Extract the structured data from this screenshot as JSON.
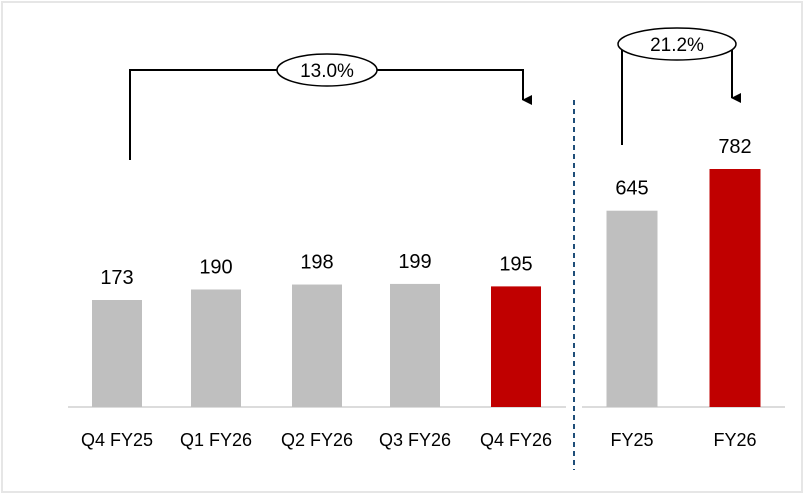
{
  "chart_data": [
    {
      "type": "bar",
      "categories": [
        "Q4 FY25",
        "Q1 FY26",
        "Q2 FY26",
        "Q3 FY26",
        "Q4 FY26"
      ],
      "values": [
        173,
        190,
        198,
        199,
        195
      ],
      "bar_colors": [
        "#bfbfbf",
        "#bfbfbf",
        "#bfbfbf",
        "#bfbfbf",
        "#c00000"
      ],
      "growth_annotation": "13.0%"
    },
    {
      "type": "bar",
      "categories": [
        "FY25",
        "FY26"
      ],
      "values": [
        645,
        782
      ],
      "bar_colors": [
        "#bfbfbf",
        "#c00000"
      ],
      "growth_annotation": "21.2%"
    }
  ]
}
